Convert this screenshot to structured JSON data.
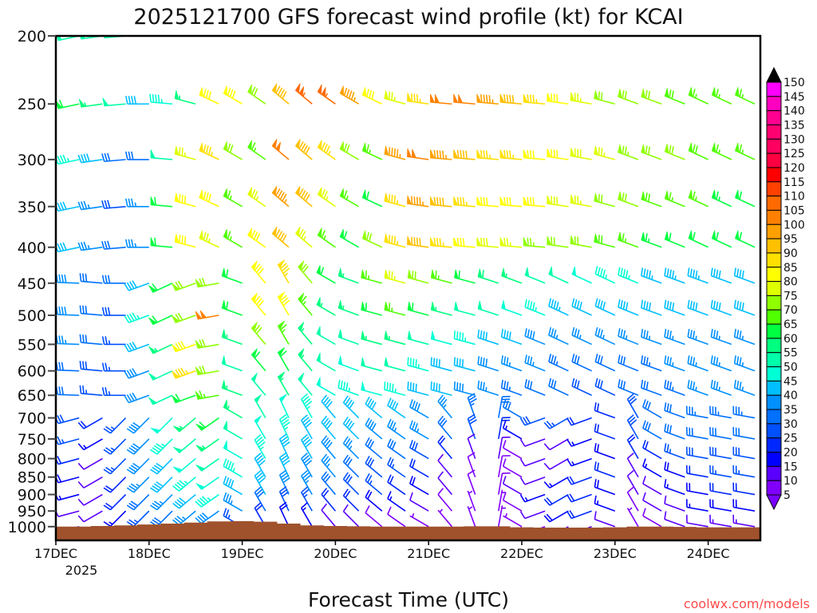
{
  "chart_data": {
    "type": "wind-barb-time-height",
    "title": "2025121700 GFS forecast wind profile (kt) for KCAI",
    "xlabel": "Forecast Time (UTC)",
    "ylabel": "",
    "watermark": "coolwx.com/models",
    "x_ticks": [
      "17DEC",
      "18DEC",
      "19DEC",
      "20DEC",
      "21DEC",
      "22DEC",
      "23DEC",
      "24DEC"
    ],
    "x_year_label": "2025",
    "x_range_hours": [
      0,
      186
    ],
    "time_step_hours": 6,
    "y_scale": "log",
    "ylim_hPa": [
      1046,
      200
    ],
    "y_ticks": [
      "200",
      "250",
      "300",
      "350",
      "400",
      "450",
      "500",
      "550",
      "600",
      "650",
      "700",
      "750",
      "800",
      "850",
      "900",
      "950",
      "1000"
    ],
    "colorbar": {
      "labels": [
        "150",
        "145",
        "140",
        "135",
        "130",
        "125",
        "120",
        "115",
        "110",
        "105",
        "100",
        "95",
        "90",
        "85",
        "80",
        "75",
        "70",
        "65",
        "60",
        "55",
        "50",
        "45",
        "40",
        "35",
        "30",
        "25",
        "20",
        "15",
        "10",
        "5"
      ],
      "bins_kt": [
        5,
        10,
        15,
        20,
        25,
        30,
        35,
        40,
        45,
        50,
        55,
        60,
        65,
        70,
        75,
        80,
        85,
        90,
        95,
        100,
        105,
        110,
        115,
        120,
        125,
        130,
        135,
        140,
        145,
        150
      ],
      "colors": [
        "#8000ff",
        "#5a00ff",
        "#0000ff",
        "#0028ff",
        "#0050ff",
        "#0070ff",
        "#0090ff",
        "#00bfff",
        "#00ffd5",
        "#00ffaa",
        "#00ff80",
        "#00ff40",
        "#50ff00",
        "#90ff00",
        "#e0ff00",
        "#ffff00",
        "#ffe000",
        "#ffc000",
        "#ffa000",
        "#ff8000",
        "#ff6a00",
        "#ff4000",
        "#ff0000",
        "#ff0040",
        "#ff0060",
        "#ff0070",
        "#ff0090",
        "#ff00c0",
        "#ff00ff"
      ],
      "under_color": "#7a00ff",
      "over_color": "#000000"
    },
    "terrain_color": "#a0522d",
    "surface_pressure_hPa": [
      1000,
      1000,
      998,
      996,
      993,
      990,
      987,
      983,
      982,
      984,
      990,
      996,
      998,
      999,
      1000,
      1000,
      1000,
      1000,
      999,
      999,
      1002,
      1003,
      1003,
      1003,
      1002,
      1000,
      1000,
      1001,
      1002,
      1002,
      1002
    ],
    "levels": [
      {
        "p": 200,
        "spd": [
          50,
          50,
          52,
          52,
          50,
          50,
          65,
          80,
          85,
          60,
          70,
          100,
          112,
          110,
          100,
          80,
          75,
          90,
          100,
          100,
          95,
          90,
          85,
          80,
          80,
          78,
          75,
          75,
          72,
          70,
          70
        ],
        "dir": [
          255,
          258,
          262,
          265,
          270,
          275,
          285,
          295,
          300,
          305,
          310,
          310,
          305,
          300,
          295,
          285,
          278,
          275,
          275,
          275,
          275,
          275,
          278,
          280,
          285,
          290,
          290,
          292,
          295,
          295,
          295
        ]
      },
      {
        "p": 250,
        "spd": [
          55,
          60,
          55,
          50,
          40,
          45,
          55,
          80,
          80,
          70,
          90,
          105,
          105,
          95,
          80,
          75,
          85,
          100,
          100,
          95,
          90,
          85,
          80,
          75,
          72,
          70,
          70,
          68,
          66,
          65,
          65
        ],
        "dir": [
          255,
          258,
          262,
          265,
          270,
          275,
          285,
          295,
          300,
          305,
          310,
          310,
          305,
          300,
          295,
          285,
          278,
          275,
          275,
          275,
          275,
          275,
          278,
          280,
          285,
          290,
          290,
          292,
          295,
          295,
          295
        ]
      },
      {
        "p": 300,
        "spd": [
          50,
          45,
          40,
          30,
          30,
          50,
          75,
          85,
          70,
          65,
          100,
          90,
          85,
          70,
          65,
          95,
          100,
          95,
          90,
          85,
          85,
          82,
          80,
          78,
          76,
          74,
          72,
          70,
          68,
          66,
          65
        ],
        "dir": [
          255,
          258,
          262,
          265,
          270,
          275,
          285,
          295,
          300,
          305,
          310,
          310,
          305,
          300,
          295,
          285,
          278,
          275,
          275,
          275,
          275,
          275,
          278,
          280,
          285,
          290,
          290,
          292,
          295,
          295,
          295
        ]
      },
      {
        "p": 350,
        "spd": [
          45,
          42,
          35,
          28,
          35,
          60,
          80,
          80,
          65,
          75,
          95,
          90,
          75,
          65,
          60,
          85,
          95,
          90,
          85,
          82,
          80,
          80,
          78,
          75,
          72,
          70,
          68,
          66,
          65,
          64,
          62
        ],
        "dir": [
          255,
          258,
          262,
          265,
          270,
          275,
          285,
          295,
          300,
          305,
          310,
          310,
          305,
          300,
          295,
          285,
          278,
          275,
          275,
          275,
          275,
          275,
          278,
          280,
          285,
          290,
          290,
          292,
          295,
          295,
          295
        ]
      },
      {
        "p": 400,
        "spd": [
          45,
          40,
          35,
          30,
          35,
          60,
          80,
          75,
          65,
          80,
          90,
          75,
          65,
          60,
          70,
          85,
          90,
          85,
          80,
          78,
          76,
          74,
          72,
          70,
          68,
          66,
          64,
          62,
          60,
          60,
          60
        ],
        "dir": [
          255,
          258,
          262,
          265,
          270,
          275,
          285,
          295,
          300,
          305,
          310,
          310,
          305,
          300,
          295,
          285,
          278,
          275,
          275,
          275,
          275,
          275,
          278,
          280,
          285,
          290,
          290,
          292,
          295,
          295,
          295
        ]
      },
      {
        "p": 450,
        "spd": [
          40,
          38,
          32,
          30,
          40,
          60,
          70,
          70,
          60,
          80,
          85,
          70,
          60,
          55,
          65,
          75,
          70,
          65,
          60,
          58,
          55,
          52,
          50,
          48,
          46,
          45,
          44,
          44,
          43,
          42,
          42
        ],
        "dir": [
          270,
          272,
          275,
          270,
          250,
          245,
          250,
          260,
          290,
          320,
          330,
          320,
          300,
          290,
          285,
          285,
          285,
          285,
          285,
          288,
          290,
          292,
          295,
          295,
          295,
          292,
          290,
          290,
          290,
          290,
          290
        ]
      },
      {
        "p": 500,
        "spd": [
          40,
          38,
          30,
          28,
          45,
          60,
          70,
          100,
          60,
          80,
          80,
          65,
          55,
          55,
          60,
          65,
          60,
          55,
          52,
          50,
          48,
          46,
          44,
          42,
          40,
          40,
          40,
          40,
          40,
          40,
          40
        ],
        "dir": [
          270,
          272,
          275,
          270,
          250,
          245,
          250,
          260,
          290,
          320,
          330,
          320,
          300,
          290,
          285,
          285,
          285,
          285,
          285,
          288,
          290,
          292,
          295,
          295,
          295,
          292,
          290,
          290,
          290,
          290,
          290
        ]
      },
      {
        "p": 550,
        "spd": [
          38,
          35,
          30,
          25,
          40,
          55,
          80,
          70,
          55,
          70,
          65,
          55,
          50,
          50,
          55,
          55,
          50,
          48,
          45,
          42,
          40,
          38,
          36,
          36,
          35,
          35,
          36,
          36,
          36,
          36,
          36
        ],
        "dir": [
          270,
          272,
          275,
          270,
          250,
          245,
          250,
          260,
          290,
          320,
          330,
          320,
          300,
          290,
          285,
          285,
          285,
          285,
          285,
          288,
          290,
          292,
          295,
          295,
          295,
          292,
          290,
          290,
          290,
          290,
          290
        ]
      },
      {
        "p": 600,
        "spd": [
          35,
          32,
          28,
          25,
          38,
          50,
          85,
          70,
          50,
          60,
          60,
          55,
          50,
          48,
          50,
          50,
          45,
          42,
          40,
          38,
          36,
          35,
          34,
          32,
          30,
          32,
          34,
          35,
          36,
          36,
          36
        ],
        "dir": [
          270,
          272,
          275,
          270,
          250,
          245,
          250,
          260,
          290,
          320,
          330,
          320,
          300,
          290,
          285,
          285,
          285,
          285,
          285,
          288,
          290,
          292,
          295,
          295,
          295,
          292,
          290,
          290,
          290,
          290,
          290
        ]
      },
      {
        "p": 650,
        "spd": [
          35,
          30,
          25,
          25,
          38,
          50,
          60,
          65,
          55,
          50,
          55,
          52,
          48,
          46,
          48,
          45,
          42,
          40,
          38,
          35,
          33,
          32,
          30,
          28,
          28,
          30,
          32,
          34,
          35,
          35,
          35
        ],
        "dir": [
          270,
          272,
          275,
          270,
          250,
          245,
          250,
          260,
          290,
          320,
          330,
          320,
          300,
          290,
          285,
          285,
          285,
          285,
          285,
          288,
          290,
          292,
          295,
          295,
          295,
          292,
          290,
          290,
          290,
          290,
          290
        ]
      },
      {
        "p": 700,
        "spd": [
          32,
          28,
          22,
          25,
          38,
          48,
          55,
          60,
          55,
          50,
          48,
          45,
          42,
          42,
          42,
          40,
          38,
          36,
          34,
          32,
          30,
          28,
          25,
          22,
          22,
          28,
          30,
          32,
          33,
          33,
          33
        ],
        "dir": [
          260,
          255,
          240,
          225,
          225,
          225,
          230,
          235,
          300,
          330,
          335,
          330,
          320,
          315,
          310,
          305,
          300,
          320,
          340,
          10,
          300,
          250,
          240,
          250,
          290,
          330,
          300,
          290,
          280,
          280,
          280
        ]
      },
      {
        "p": 750,
        "spd": [
          30,
          25,
          15,
          25,
          38,
          45,
          50,
          55,
          50,
          48,
          45,
          42,
          40,
          40,
          38,
          36,
          35,
          32,
          28,
          22,
          15,
          12,
          10,
          15,
          20,
          28,
          30,
          32,
          32,
          32,
          32
        ],
        "dir": [
          260,
          255,
          240,
          225,
          225,
          225,
          230,
          235,
          300,
          330,
          335,
          330,
          320,
          315,
          310,
          305,
          300,
          320,
          340,
          10,
          300,
          250,
          240,
          250,
          290,
          330,
          300,
          290,
          280,
          280,
          280
        ]
      },
      {
        "p": 800,
        "spd": [
          25,
          20,
          10,
          25,
          38,
          42,
          48,
          50,
          48,
          45,
          42,
          40,
          38,
          35,
          32,
          30,
          28,
          20,
          12,
          10,
          8,
          10,
          12,
          15,
          18,
          20,
          22,
          25,
          28,
          28,
          28
        ],
        "dir": [
          260,
          255,
          240,
          225,
          225,
          225,
          230,
          235,
          300,
          330,
          335,
          330,
          320,
          315,
          310,
          305,
          300,
          320,
          340,
          10,
          300,
          250,
          240,
          250,
          290,
          330,
          300,
          290,
          280,
          280,
          280
        ]
      },
      {
        "p": 850,
        "spd": [
          22,
          18,
          12,
          22,
          35,
          40,
          45,
          48,
          45,
          42,
          40,
          38,
          35,
          32,
          28,
          25,
          22,
          12,
          8,
          8,
          8,
          10,
          15,
          20,
          22,
          12,
          15,
          18,
          22,
          25,
          25
        ],
        "dir": [
          260,
          255,
          240,
          225,
          225,
          225,
          230,
          235,
          300,
          330,
          335,
          330,
          320,
          315,
          310,
          305,
          300,
          320,
          340,
          10,
          300,
          250,
          240,
          250,
          290,
          330,
          300,
          290,
          280,
          280,
          280
        ]
      },
      {
        "p": 900,
        "spd": [
          20,
          15,
          12,
          20,
          30,
          35,
          40,
          45,
          42,
          40,
          38,
          35,
          30,
          28,
          25,
          22,
          18,
          10,
          8,
          8,
          10,
          15,
          20,
          22,
          18,
          10,
          12,
          15,
          18,
          22,
          22
        ],
        "dir": [
          260,
          255,
          240,
          225,
          225,
          225,
          230,
          235,
          300,
          330,
          335,
          330,
          320,
          315,
          310,
          305,
          300,
          320,
          340,
          10,
          300,
          250,
          240,
          250,
          290,
          330,
          300,
          290,
          280,
          280,
          280
        ]
      },
      {
        "p": 950,
        "spd": [
          15,
          12,
          10,
          15,
          25,
          30,
          35,
          38,
          35,
          30,
          28,
          25,
          22,
          20,
          18,
          15,
          12,
          8,
          6,
          6,
          8,
          12,
          18,
          20,
          15,
          8,
          10,
          12,
          15,
          18,
          18
        ],
        "dir": [
          260,
          255,
          240,
          225,
          225,
          225,
          230,
          235,
          300,
          330,
          335,
          330,
          320,
          315,
          310,
          305,
          300,
          320,
          340,
          10,
          300,
          250,
          240,
          250,
          290,
          330,
          300,
          290,
          280,
          280,
          280
        ]
      },
      {
        "p": 1000,
        "spd": [
          12,
          10,
          8,
          12,
          20,
          25,
          28,
          30,
          25,
          20,
          18,
          15,
          12,
          10,
          8,
          8,
          6,
          5,
          5,
          5,
          6,
          8,
          10,
          12,
          10,
          6,
          8,
          10,
          12,
          14,
          14
        ],
        "dir": [
          260,
          255,
          240,
          225,
          225,
          225,
          230,
          235,
          300,
          330,
          335,
          330,
          320,
          315,
          310,
          305,
          300,
          320,
          340,
          10,
          300,
          250,
          240,
          250,
          290,
          330,
          300,
          290,
          280,
          280,
          280
        ]
      }
    ]
  }
}
